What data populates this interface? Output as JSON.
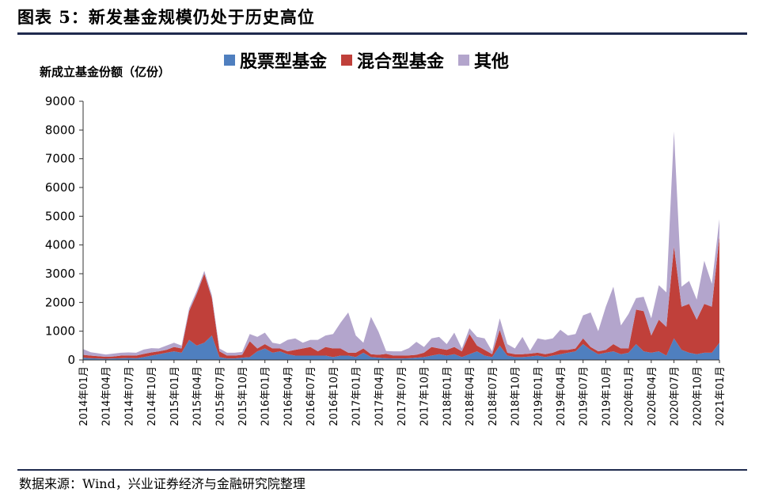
{
  "figure": {
    "title": "图表 5：新发基金规模仍处于历史高位",
    "source": "数据来源：Wind，兴业证券经济与金融研究院整理"
  },
  "colors": {
    "stock": "#4f7fbf",
    "mixed": "#c0403a",
    "other": "#b3a5cc"
  },
  "chart_data": {
    "type": "area",
    "stacked": true,
    "ylabel": "新成立基金份额（亿份）",
    "ylim": [
      0,
      9000
    ],
    "yticks": [
      0,
      1000,
      2000,
      3000,
      4000,
      5000,
      6000,
      7000,
      8000,
      9000
    ],
    "legend_position": "top",
    "grid": false,
    "x_start": "2014-01",
    "x_end": "2021-01",
    "xtick_labels": [
      "2014年01月",
      "2014年04月",
      "2014年07月",
      "2014年10月",
      "2015年01月",
      "2015年04月",
      "2015年07月",
      "2015年10月",
      "2016年01月",
      "2016年04月",
      "2016年07月",
      "2016年10月",
      "2017年01月",
      "2017年04月",
      "2017年07月",
      "2017年10月",
      "2018年01月",
      "2018年04月",
      "2018年07月",
      "2018年10月",
      "2019年01月",
      "2019年04月",
      "2019年07月",
      "2019年10月",
      "2020年01月",
      "2020年04月",
      "2020年07月",
      "2020年10月",
      "2021年01月"
    ],
    "series": [
      {
        "name": "股票型基金",
        "values": [
          80,
          60,
          50,
          40,
          50,
          60,
          70,
          60,
          100,
          150,
          200,
          250,
          300,
          250,
          700,
          500,
          600,
          850,
          100,
          50,
          50,
          80,
          100,
          300,
          400,
          250,
          300,
          200,
          150,
          150,
          150,
          150,
          150,
          100,
          150,
          150,
          100,
          250,
          100,
          80,
          60,
          50,
          50,
          60,
          80,
          100,
          150,
          200,
          150,
          200,
          100,
          200,
          300,
          150,
          100,
          500,
          150,
          100,
          100,
          120,
          150,
          100,
          150,
          200,
          250,
          300,
          550,
          350,
          200,
          250,
          300,
          200,
          250,
          550,
          300,
          250,
          300,
          150,
          750,
          350,
          250,
          200,
          250,
          250,
          600
        ]
      },
      {
        "name": "混合型基金",
        "values": [
          100,
          90,
          80,
          70,
          70,
          90,
          90,
          90,
          110,
          110,
          100,
          100,
          150,
          150,
          1000,
          1800,
          2400,
          1300,
          200,
          100,
          100,
          100,
          550,
          100,
          150,
          150,
          100,
          100,
          200,
          250,
          300,
          150,
          300,
          300,
          250,
          100,
          150,
          150,
          100,
          100,
          150,
          100,
          100,
          100,
          100,
          150,
          300,
          200,
          200,
          250,
          200,
          700,
          200,
          200,
          100,
          550,
          100,
          100,
          100,
          100,
          100,
          100,
          100,
          150,
          100,
          100,
          200,
          100,
          100,
          100,
          250,
          200,
          150,
          1200,
          1400,
          600,
          1100,
          1000,
          3200,
          1500,
          1700,
          1200,
          1700,
          1600,
          3700
        ]
      },
      {
        "name": "其他",
        "values": [
          200,
          120,
          100,
          80,
          100,
          100,
          100,
          100,
          150,
          150,
          100,
          150,
          150,
          100,
          100,
          100,
          100,
          100,
          100,
          100,
          100,
          100,
          250,
          400,
          400,
          200,
          150,
          400,
          400,
          200,
          250,
          400,
          400,
          500,
          900,
          1400,
          600,
          200,
          1300,
          800,
          100,
          150,
          150,
          250,
          450,
          200,
          300,
          400,
          200,
          500,
          100,
          200,
          300,
          400,
          100,
          400,
          300,
          200,
          600,
          100,
          500,
          500,
          500,
          700,
          500,
          500,
          800,
          1200,
          700,
          1500,
          2000,
          800,
          1200,
          400,
          500,
          600,
          1200,
          1200,
          4000,
          700,
          800,
          700,
          1500,
          800,
          600
        ]
      }
    ]
  }
}
